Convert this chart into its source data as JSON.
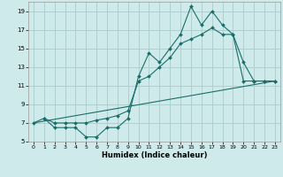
{
  "bg_color": "#ceeaea",
  "grid_color": "#b0d0d0",
  "line_color": "#1a6e6a",
  "xlabel": "Humidex (Indice chaleur)",
  "xlim": [
    -0.5,
    23.5
  ],
  "ylim": [
    5,
    20
  ],
  "yticks": [
    5,
    7,
    9,
    11,
    13,
    15,
    17,
    19
  ],
  "xticks": [
    0,
    1,
    2,
    3,
    4,
    5,
    6,
    7,
    8,
    9,
    10,
    11,
    12,
    13,
    14,
    15,
    16,
    17,
    18,
    19,
    20,
    21,
    22,
    23
  ],
  "line1_x": [
    1,
    2,
    3,
    4,
    5,
    6,
    7,
    8,
    9,
    10,
    11,
    12,
    13,
    14,
    15,
    16,
    17,
    18,
    19,
    20,
    21,
    22,
    23
  ],
  "line1_y": [
    7.5,
    6.5,
    6.5,
    6.5,
    5.5,
    5.5,
    6.5,
    6.5,
    7.5,
    12.0,
    14.5,
    13.5,
    15.0,
    16.5,
    19.5,
    17.5,
    19.0,
    17.5,
    16.5,
    13.5,
    11.5,
    11.5,
    11.5
  ],
  "line2_x": [
    0,
    23
  ],
  "line2_y": [
    7.0,
    11.5
  ],
  "line3_x": [
    0,
    1,
    2,
    3,
    4,
    5,
    6,
    7,
    8,
    9,
    10,
    11,
    12,
    13,
    14,
    15,
    16,
    17,
    18,
    19,
    20,
    21,
    22,
    23
  ],
  "line3_y": [
    7.0,
    7.5,
    7.0,
    7.0,
    7.0,
    7.0,
    7.3,
    7.5,
    7.8,
    8.3,
    11.5,
    12.0,
    13.0,
    14.0,
    15.5,
    16.0,
    16.5,
    17.2,
    16.5,
    16.5,
    11.5,
    11.5,
    11.5,
    11.5
  ]
}
